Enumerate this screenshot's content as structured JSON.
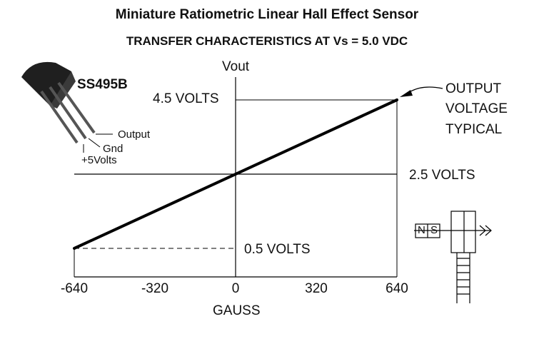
{
  "title": "Miniature Ratiometric Linear Hall Effect Sensor",
  "subtitle": "TRANSFER CHARACTERISTICS AT Vs = 5.0 VDC",
  "part_number": "SS495B",
  "pins": {
    "output": "Output",
    "gnd": "Gnd",
    "vcc": "+5Volts"
  },
  "magnet": {
    "north": "N",
    "south": "S"
  },
  "colors": {
    "line": "#000000",
    "background": "#ffffff",
    "package": "#1f1f1f"
  },
  "chart_data": {
    "type": "line",
    "title": "TRANSFER CHARACTERISTICS AT Vs = 5.0 VDC",
    "xlabel": "GAUSS",
    "ylabel": "Vout",
    "x_ticks": [
      -640,
      -320,
      0,
      320,
      640
    ],
    "x_tick_labels": [
      "-640",
      "-320",
      "0",
      "320",
      "640"
    ],
    "xlim": [
      -640,
      640
    ],
    "ylim": [
      0.5,
      4.5
    ],
    "series": [
      {
        "name": "OUTPUT VOLTAGE TYPICAL",
        "x": [
          -640,
          0,
          640
        ],
        "y": [
          0.5,
          2.5,
          4.5
        ]
      }
    ],
    "reference_levels": [
      {
        "value": 4.5,
        "label": "4.5 VOLTS"
      },
      {
        "value": 2.5,
        "label": "2.5 VOLTS"
      },
      {
        "value": 0.5,
        "label": "0.5 VOLTS"
      }
    ],
    "annotation": [
      "OUTPUT",
      "VOLTAGE",
      "TYPICAL"
    ],
    "grid": false,
    "legend": "none"
  }
}
